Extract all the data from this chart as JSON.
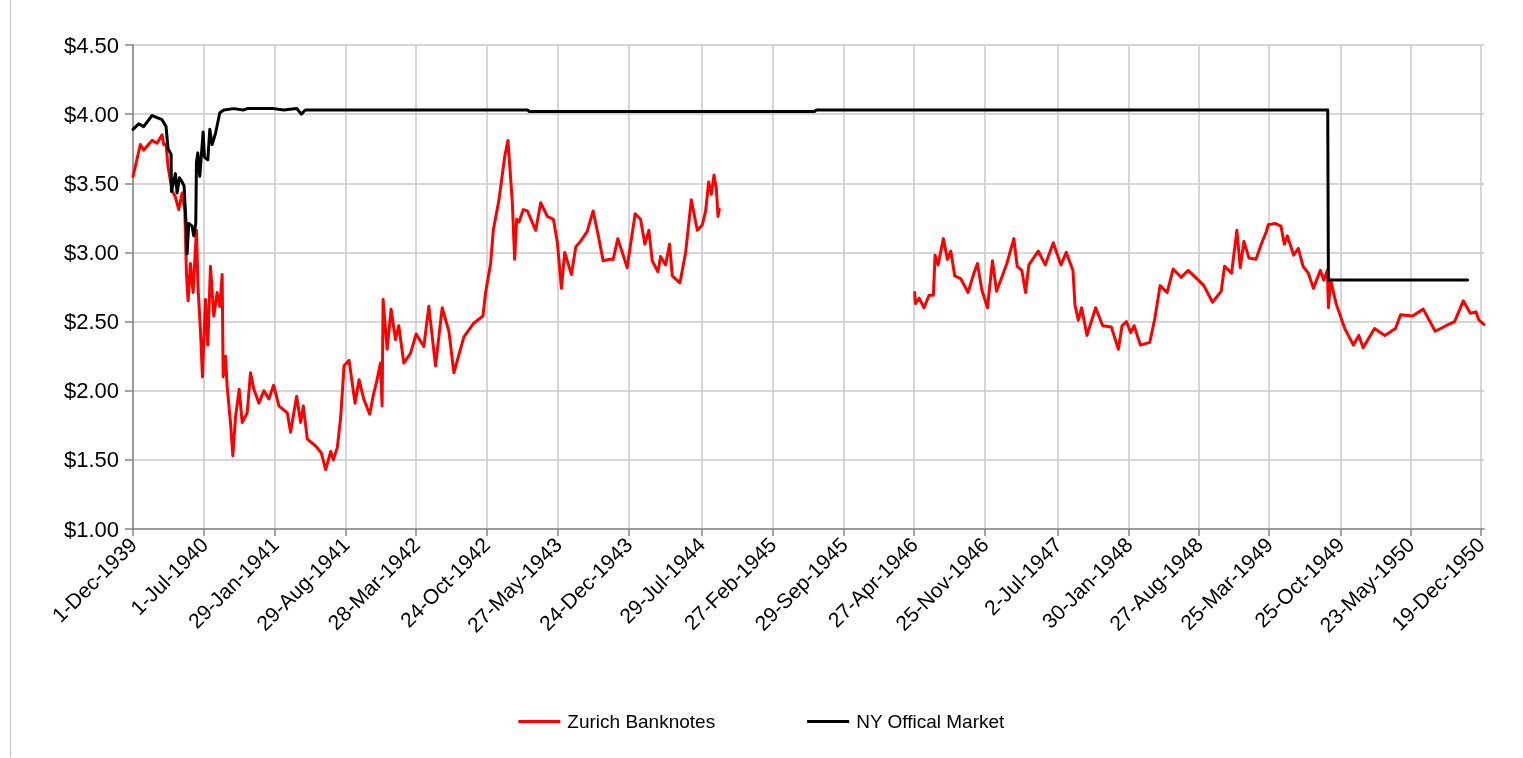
{
  "chart_data": {
    "type": "line",
    "series": [
      {
        "name": "Zurich Banknotes",
        "color": "#ff0000",
        "x": [
          "1939-12-01",
          "1939-12-23",
          "1940-01-02",
          "1940-01-27",
          "1940-02-11",
          "1940-02-26",
          "1940-03-02",
          "1940-03-09",
          "1940-03-15",
          "1940-03-27",
          "1940-04-06",
          "1940-04-16",
          "1940-04-26",
          "1940-05-04",
          "1940-05-09",
          "1940-05-14",
          "1940-05-21",
          "1940-05-29",
          "1940-06-08",
          "1940-06-13",
          "1940-06-20",
          "1940-06-26",
          "1940-07-05",
          "1940-07-12",
          "1940-07-20",
          "1940-07-30",
          "1940-08-09",
          "1940-08-17",
          "1940-08-24",
          "1940-08-27",
          "1940-09-03",
          "1940-09-08",
          "1940-09-18",
          "1940-09-25",
          "1940-10-03",
          "1940-10-14",
          "1940-10-23",
          "1940-11-07",
          "1940-11-17",
          "1940-11-27",
          "1940-12-12",
          "1940-12-27",
          "1941-01-11",
          "1941-01-25",
          "1941-02-10",
          "1941-03-07",
          "1941-03-17",
          "1941-04-04",
          "1941-04-16",
          "1941-04-24",
          "1941-05-06",
          "1941-05-31",
          "1941-06-17",
          "1941-06-30",
          "1941-07-15",
          "1941-07-23",
          "1941-08-04",
          "1941-08-14",
          "1941-08-24",
          "1941-09-08",
          "1941-09-26",
          "1941-10-08",
          "1941-10-22",
          "1941-11-09",
          "1941-11-19",
          "1941-12-01",
          "1941-12-11",
          "1941-12-16",
          "1941-12-19",
          "1941-12-31",
          "1942-01-12",
          "1942-01-25",
          "1942-02-04",
          "1942-02-19",
          "1942-03-11",
          "1942-03-28",
          "1942-04-20",
          "1942-05-05",
          "1942-05-25",
          "1942-06-14",
          "1942-07-04",
          "1942-07-19",
          "1942-08-03",
          "1942-08-18",
          "1942-09-17",
          "1942-10-14",
          "1942-10-22",
          "1942-11-06",
          "1942-11-14",
          "1942-12-01",
          "1942-12-18",
          "1942-12-28",
          "1943-01-10",
          "1943-01-17",
          "1943-01-23",
          "1943-01-30",
          "1943-02-12",
          "1943-02-24",
          "1943-03-21",
          "1943-04-05",
          "1943-04-25",
          "1943-05-13",
          "1943-05-25",
          "1943-06-06",
          "1943-06-16",
          "1943-07-06",
          "1943-07-19",
          "1943-08-02",
          "1943-08-22",
          "1943-09-09",
          "1943-09-23",
          "1943-10-09",
          "1943-10-26",
          "1943-11-08",
          "1943-11-22",
          "1943-12-20",
          "1944-01-01",
          "1944-01-13",
          "1944-01-29",
          "1944-02-11",
          "1944-02-23",
          "1944-03-04",
          "1944-03-21",
          "1944-03-29",
          "1944-04-13",
          "1944-04-25",
          "1944-05-03",
          "1944-05-26",
          "1944-06-12",
          "1944-06-29",
          "1944-07-17",
          "1944-08-01",
          "1944-08-11",
          "1944-08-20",
          "1944-08-28",
          "1944-09-05",
          "1944-09-12",
          "1944-09-17",
          "1944-09-21",
          "1945-06-01",
          "1946-04-29",
          "1946-05-01",
          "1946-05-12",
          "1946-05-27",
          "1946-06-11",
          "1946-06-24",
          "1946-06-29",
          "1946-07-08",
          "1946-07-24",
          "1946-08-05",
          "1946-08-15",
          "1946-08-27",
          "1946-09-14",
          "1946-10-06",
          "1946-10-22",
          "1946-11-03",
          "1946-11-16",
          "1946-12-03",
          "1946-12-18",
          "1946-12-30",
          "1947-01-15",
          "1947-01-30",
          "1947-02-20",
          "1947-03-02",
          "1947-03-16",
          "1947-03-27",
          "1947-04-06",
          "1947-05-04",
          "1947-05-25",
          "1947-06-18",
          "1947-07-11",
          "1947-07-27",
          "1947-08-16",
          "1947-08-22",
          "1947-09-01",
          "1947-09-11",
          "1947-09-27",
          "1947-10-23",
          "1947-11-13",
          "1947-12-09",
          "1947-12-30",
          "1948-01-10",
          "1948-01-23",
          "1948-02-05",
          "1948-02-15",
          "1948-03-05",
          "1948-04-02",
          "1948-04-17",
          "1948-05-03",
          "1948-05-24",
          "1948-06-11",
          "1948-07-05",
          "1948-07-26",
          "1948-08-21",
          "1948-09-11",
          "1948-10-07",
          "1948-11-02",
          "1948-11-12",
          "1948-12-03",
          "1948-12-19",
          "1948-12-29",
          "1949-01-09",
          "1949-01-24",
          "1949-02-14",
          "1949-03-02",
          "1949-03-17",
          "1949-03-23",
          "1949-04-12",
          "1949-04-30",
          "1949-05-10",
          "1949-05-19",
          "1949-06-07",
          "1949-06-21",
          "1949-07-05",
          "1949-07-21",
          "1949-08-05",
          "1949-08-26",
          "1949-09-05",
          "1949-09-16",
          "1949-09-19",
          "1949-09-26",
          "1949-10-12",
          "1949-11-07",
          "1949-12-03",
          "1949-12-19",
          "1950-01-01",
          "1950-02-04",
          "1950-03-07",
          "1950-04-08",
          "1950-04-23",
          "1950-05-29",
          "1950-06-30",
          "1950-08-05",
          "1950-09-06",
          "1950-10-02",
          "1950-10-28",
          "1950-11-18",
          "1950-12-05",
          "1950-12-14",
          "1950-12-29"
        ],
        "values": [
          3.55,
          3.78,
          3.74,
          3.81,
          3.79,
          3.85,
          3.78,
          3.78,
          3.62,
          3.45,
          3.4,
          3.31,
          3.43,
          3.31,
          2.85,
          2.65,
          2.92,
          2.71,
          3.16,
          2.73,
          2.44,
          2.1,
          2.66,
          2.33,
          2.9,
          2.54,
          2.71,
          2.61,
          2.84,
          2.1,
          2.25,
          2.03,
          1.77,
          1.53,
          1.81,
          2.01,
          1.77,
          1.84,
          2.13,
          2.01,
          1.91,
          2.0,
          1.94,
          2.04,
          1.89,
          1.84,
          1.7,
          1.96,
          1.77,
          1.89,
          1.65,
          1.6,
          1.55,
          1.43,
          1.56,
          1.5,
          1.59,
          1.81,
          2.18,
          2.22,
          1.91,
          2.08,
          1.94,
          1.83,
          1.96,
          2.08,
          2.2,
          1.89,
          2.66,
          2.3,
          2.59,
          2.37,
          2.47,
          2.2,
          2.27,
          2.41,
          2.32,
          2.61,
          2.18,
          2.6,
          2.43,
          2.13,
          2.26,
          2.39,
          2.49,
          2.54,
          2.71,
          2.92,
          3.16,
          3.38,
          3.69,
          3.81,
          3.36,
          2.95,
          3.24,
          3.22,
          3.31,
          3.3,
          3.16,
          3.36,
          3.26,
          3.24,
          3.07,
          2.74,
          3.0,
          2.84,
          3.04,
          3.08,
          3.15,
          3.3,
          3.14,
          2.94,
          2.95,
          2.95,
          3.1,
          2.89,
          3.09,
          3.28,
          3.24,
          3.06,
          3.16,
          2.94,
          2.86,
          2.97,
          2.91,
          3.06,
          2.83,
          2.78,
          3.0,
          3.38,
          3.16,
          3.2,
          3.3,
          3.51,
          3.42,
          3.56,
          3.46,
          3.26,
          3.31,
          null,
          2.71,
          2.63,
          2.67,
          2.6,
          2.69,
          2.69,
          2.98,
          2.91,
          3.1,
          2.95,
          3.01,
          2.83,
          2.81,
          2.71,
          2.84,
          2.92,
          2.73,
          2.6,
          2.94,
          2.72,
          2.82,
          2.92,
          3.1,
          2.9,
          2.87,
          2.71,
          2.91,
          3.01,
          2.91,
          3.07,
          2.91,
          3.0,
          2.87,
          2.62,
          2.51,
          2.6,
          2.4,
          2.6,
          2.47,
          2.46,
          2.3,
          2.47,
          2.5,
          2.42,
          2.47,
          2.33,
          2.35,
          2.52,
          2.76,
          2.71,
          2.88,
          2.82,
          2.87,
          2.81,
          2.76,
          2.64,
          2.72,
          2.9,
          2.85,
          3.16,
          2.89,
          3.08,
          2.96,
          2.95,
          3.06,
          3.15,
          3.2,
          3.21,
          3.19,
          3.06,
          3.12,
          2.98,
          3.03,
          2.9,
          2.85,
          2.74,
          2.87,
          2.8,
          2.87,
          2.6,
          2.8,
          2.63,
          2.45,
          2.33,
          2.4,
          2.31,
          2.45,
          2.4,
          2.45,
          2.55,
          2.54,
          2.59,
          2.43,
          2.47,
          2.5,
          2.65,
          2.56,
          2.57,
          2.51,
          2.48
        ]
      },
      {
        "name": "NY Offical Market",
        "color": "#000000",
        "x": [
          "1939-12-01",
          "1939-12-18",
          "1940-01-02",
          "1940-01-27",
          "1940-02-26",
          "1940-03-09",
          "1940-03-15",
          "1940-03-24",
          "1940-03-25",
          "1940-04-06",
          "1940-04-11",
          "1940-04-18",
          "1940-04-26",
          "1940-05-02",
          "1940-05-09",
          "1940-05-11",
          "1940-05-16",
          "1940-05-26",
          "1940-05-31",
          "1940-06-06",
          "1940-06-08",
          "1940-06-12",
          "1940-06-18",
          "1940-06-28",
          "1940-07-02",
          "1940-07-12",
          "1940-07-18",
          "1940-07-25",
          "1940-08-04",
          "1940-08-17",
          "1940-08-29",
          "1940-09-28",
          "1940-10-26",
          "1940-11-07",
          "1941-01-25",
          "1941-02-24",
          "1941-04-05",
          "1941-04-18",
          "1941-04-30",
          "1943-02-25",
          "1943-03-01",
          "1945-07-04",
          "1945-07-08",
          "1949-09-17",
          "1949-09-19",
          "1950-11-10"
        ],
        "values": [
          3.89,
          3.93,
          3.91,
          3.99,
          3.96,
          3.91,
          3.75,
          3.71,
          3.44,
          3.57,
          3.43,
          3.54,
          3.51,
          3.48,
          3.16,
          2.99,
          3.21,
          3.19,
          3.12,
          3.21,
          3.65,
          3.72,
          3.55,
          3.87,
          3.69,
          3.67,
          3.89,
          3.78,
          3.86,
          4.01,
          4.03,
          4.04,
          4.03,
          4.04,
          4.04,
          4.03,
          4.04,
          4.0,
          4.03,
          4.03,
          4.02,
          4.02,
          4.03,
          4.03,
          2.8,
          2.8
        ]
      }
    ],
    "xlim": [
      "1939-12-01",
      "1950-12-29"
    ],
    "xticks": [
      {
        "value": "1939-12-01",
        "label": "1-Dec-1939"
      },
      {
        "value": "1940-07-01",
        "label": "1-Jul-1940"
      },
      {
        "value": "1941-01-29",
        "label": "29-Jan-1941"
      },
      {
        "value": "1941-08-29",
        "label": "29-Aug-1941"
      },
      {
        "value": "1942-03-28",
        "label": "28-Mar-1942"
      },
      {
        "value": "1942-10-24",
        "label": "24-Oct-1942"
      },
      {
        "value": "1943-05-27",
        "label": "27-May-1943"
      },
      {
        "value": "1943-12-24",
        "label": "24-Dec-1943"
      },
      {
        "value": "1944-07-29",
        "label": "29-Jul-1944"
      },
      {
        "value": "1945-02-27",
        "label": "27-Feb-1945"
      },
      {
        "value": "1945-09-29",
        "label": "29-Sep-1945"
      },
      {
        "value": "1946-04-27",
        "label": "27-Apr-1946"
      },
      {
        "value": "1946-11-25",
        "label": "25-Nov-1946"
      },
      {
        "value": "1947-07-02",
        "label": "2-Jul-1947"
      },
      {
        "value": "1948-01-30",
        "label": "30-Jan-1948"
      },
      {
        "value": "1948-08-27",
        "label": "27-Aug-1948"
      },
      {
        "value": "1949-03-25",
        "label": "25-Mar-1949"
      },
      {
        "value": "1949-10-25",
        "label": "25-Oct-1949"
      },
      {
        "value": "1950-05-23",
        "label": "23-May-1950"
      },
      {
        "value": "1950-12-19",
        "label": "19-Dec-1950"
      }
    ],
    "ylim": [
      1,
      4.5
    ],
    "yticks": [
      {
        "value": 1,
        "label": "$1.00"
      },
      {
        "value": 1.5,
        "label": "$1.50"
      },
      {
        "value": 2,
        "label": "$2.00"
      },
      {
        "value": 2.5,
        "label": "$2.50"
      },
      {
        "value": 3,
        "label": "$3.00"
      },
      {
        "value": 3.5,
        "label": "$3.50"
      },
      {
        "value": 4,
        "label": "$4.00"
      },
      {
        "value": 4.5,
        "label": "$4.50"
      }
    ],
    "grid": true,
    "legend": "bottom",
    "marker": "none"
  }
}
